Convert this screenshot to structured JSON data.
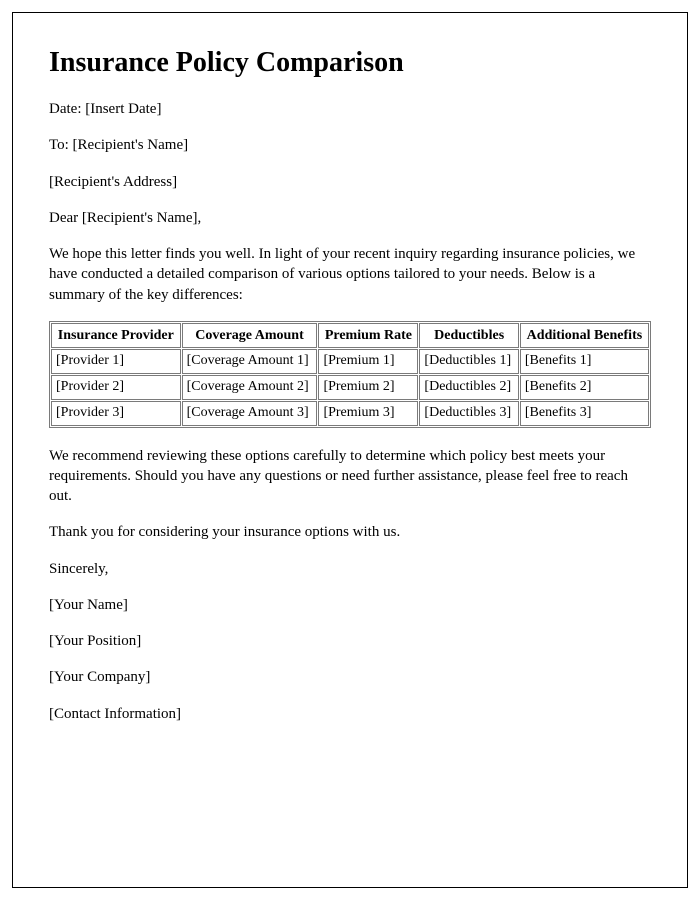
{
  "title": "Insurance Policy Comparison",
  "date_line": "Date: [Insert Date]",
  "to_line": "To: [Recipient's Name]",
  "address_line": "[Recipient's Address]",
  "salutation": "Dear [Recipient's Name],",
  "intro": "We hope this letter finds you well. In light of your recent inquiry regarding insurance policies, we have conducted a detailed comparison of various options tailored to your needs. Below is a summary of the key differences:",
  "table": {
    "columns": [
      "Insurance Provider",
      "Coverage Amount",
      "Premium Rate",
      "Deductibles",
      "Additional Benefits"
    ],
    "rows": [
      [
        "[Provider 1]",
        "[Coverage Amount 1]",
        "[Premium 1]",
        "[Deductibles 1]",
        "[Benefits 1]"
      ],
      [
        "[Provider 2]",
        "[Coverage Amount 2]",
        "[Premium 2]",
        "[Deductibles 2]",
        "[Benefits 2]"
      ],
      [
        "[Provider 3]",
        "[Coverage Amount 3]",
        "[Premium 3]",
        "[Deductibles 3]",
        "[Benefits 3]"
      ]
    ],
    "border_color": "#7a7a7a",
    "header_fontsize": 14,
    "cell_fontsize": 14
  },
  "recommend": "We recommend reviewing these options carefully to determine which policy best meets your requirements. Should you have any questions or need further assistance, please feel free to reach out.",
  "thanks": "Thank you for considering your insurance options with us.",
  "closing": "Sincerely,",
  "sig_name": "[Your Name]",
  "sig_position": "[Your Position]",
  "sig_company": "[Your Company]",
  "sig_contact": "[Contact Information]",
  "styling": {
    "page_border_color": "#000000",
    "background_color": "#ffffff",
    "text_color": "#000000",
    "title_fontsize": 28,
    "body_fontsize": 15,
    "font_family": "Georgia, Times New Roman, serif"
  }
}
